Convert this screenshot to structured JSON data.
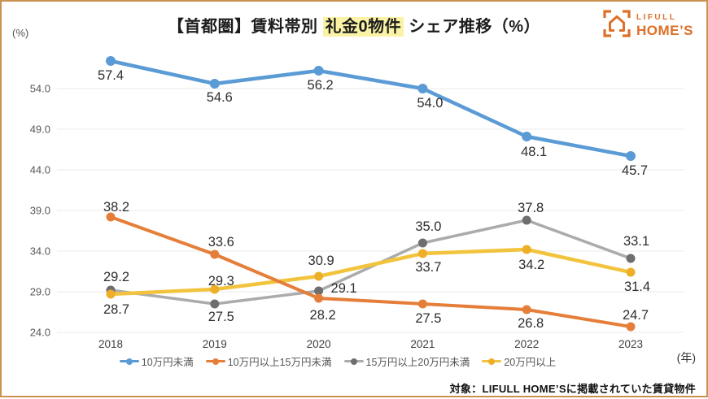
{
  "page": {
    "title": {
      "pre": "【首都圏】賃料帯別 ",
      "highlight": "礼金0物件",
      "post": " シェア推移（%）"
    },
    "y_unit": "(%)",
    "x_unit": "(年)",
    "footer_note": "対象：LIFULL HOME’Sに掲載されていた賃貸物件",
    "logo": {
      "brand_top": "LIFULL",
      "brand_bottom": "HOME’S",
      "color": "#dd6f28"
    }
  },
  "chart_data": {
    "type": "line",
    "title": "【首都圏】賃料帯別 礼金0物件 シェア推移（%）",
    "xlabel": "(年)",
    "ylabel": "(%)",
    "x": [
      "2018",
      "2019",
      "2020",
      "2021",
      "2022",
      "2023"
    ],
    "yticks": [
      "24.0",
      "29.0",
      "34.0",
      "39.0",
      "44.0",
      "49.0",
      "54.0"
    ],
    "ylim": [
      24.0,
      54.0
    ],
    "grid": true,
    "legend_position": "bottom",
    "gridline_color": "#ebebeb",
    "tick_color": "#595959",
    "data_label_color": "#2e2e2e",
    "draw_order": [
      2,
      3,
      1,
      0
    ],
    "series": [
      {
        "name": "10万円未満",
        "color": "#5b9bd5",
        "dot_color": "#5b9bd5",
        "values": [
          57.4,
          54.6,
          56.2,
          54.0,
          48.1,
          45.7
        ],
        "label_offsets": [
          [
            0,
            23
          ],
          [
            6,
            22
          ],
          [
            2,
            23
          ],
          [
            9,
            23
          ],
          [
            9,
            24
          ],
          [
            5,
            23
          ]
        ]
      },
      {
        "name": "10万円以上15万円未満",
        "color": "#e57e38",
        "dot_color": "#e57e38",
        "values": [
          38.2,
          33.6,
          28.2,
          27.5,
          26.8,
          24.7
        ],
        "label_offsets": [
          [
            7,
            -7
          ],
          [
            8,
            -10
          ],
          [
            5,
            26
          ],
          [
            7,
            23
          ],
          [
            5,
            22
          ],
          [
            6,
            -9
          ]
        ]
      },
      {
        "name": "15万円以上20万円未満",
        "color": "#ababab",
        "dot_color": "#6e6e6e",
        "values": [
          29.2,
          27.5,
          29.1,
          35.0,
          37.8,
          33.1
        ],
        "label_offsets": [
          [
            7,
            -11
          ],
          [
            8,
            21
          ],
          [
            31,
            2
          ],
          [
            7,
            -15
          ],
          [
            5,
            -10
          ],
          [
            7,
            -16
          ]
        ]
      },
      {
        "name": "20万円以上",
        "color": "#f2c43d",
        "dot_color": "#eeae27",
        "values": [
          28.7,
          29.3,
          30.9,
          33.7,
          34.2,
          31.4
        ],
        "label_offsets": [
          [
            7,
            24
          ],
          [
            8,
            -5
          ],
          [
            3,
            -14
          ],
          [
            7,
            22
          ],
          [
            6,
            24
          ],
          [
            8,
            23
          ]
        ]
      }
    ]
  }
}
